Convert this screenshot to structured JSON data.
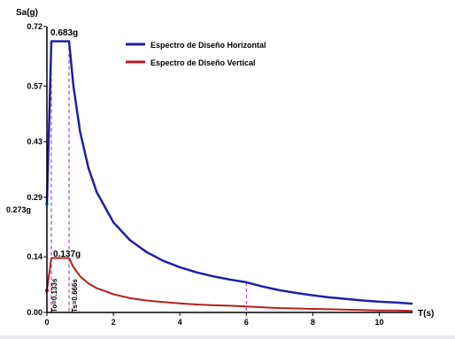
{
  "chart_data": {
    "type": "line",
    "ylabel": "Sa(g)",
    "xlabel": "T(s)",
    "xlim": [
      0,
      11
    ],
    "ylim": [
      0,
      0.72
    ],
    "x_ticks": [
      0,
      2,
      4,
      6,
      8,
      10
    ],
    "y_ticks": [
      {
        "value": 0.0,
        "label": "0.00"
      },
      {
        "value": 0.14,
        "label": "0.14"
      },
      {
        "value": 0.29,
        "label": "0.29"
      },
      {
        "value": 0.43,
        "label": "0.43"
      },
      {
        "value": 0.57,
        "label": "0.57"
      },
      {
        "value": 0.72,
        "label": "0.72"
      }
    ],
    "legend_position": "top-center",
    "series": [
      {
        "name": "Espectro de Diseño Horizontal",
        "color": "#1f1fa8",
        "points": [
          [
            0,
            0.273
          ],
          [
            0.133,
            0.683
          ],
          [
            0.666,
            0.683
          ],
          [
            0.8,
            0.569
          ],
          [
            1.0,
            0.455
          ],
          [
            1.25,
            0.364
          ],
          [
            1.5,
            0.303
          ],
          [
            2.0,
            0.227
          ],
          [
            2.5,
            0.182
          ],
          [
            3.0,
            0.152
          ],
          [
            3.5,
            0.13
          ],
          [
            4.0,
            0.114
          ],
          [
            4.5,
            0.101
          ],
          [
            5.0,
            0.091
          ],
          [
            5.5,
            0.083
          ],
          [
            6.0,
            0.076
          ],
          [
            6.5,
            0.065
          ],
          [
            7.0,
            0.056
          ],
          [
            7.5,
            0.049
          ],
          [
            8.0,
            0.043
          ],
          [
            8.5,
            0.038
          ],
          [
            9.0,
            0.034
          ],
          [
            9.5,
            0.03
          ],
          [
            10.0,
            0.027
          ],
          [
            10.5,
            0.025
          ],
          [
            11.0,
            0.022
          ]
        ]
      },
      {
        "name": "Espectro de Diseño Vertical",
        "color": "#b52020",
        "points": [
          [
            0,
            0.055
          ],
          [
            0.133,
            0.137
          ],
          [
            0.666,
            0.137
          ],
          [
            0.8,
            0.114
          ],
          [
            1.0,
            0.091
          ],
          [
            1.25,
            0.073
          ],
          [
            1.5,
            0.061
          ],
          [
            2.0,
            0.046
          ],
          [
            2.5,
            0.036
          ],
          [
            3.0,
            0.03
          ],
          [
            3.5,
            0.026
          ],
          [
            4.0,
            0.023
          ],
          [
            4.5,
            0.02
          ],
          [
            5.0,
            0.018
          ],
          [
            5.5,
            0.017
          ],
          [
            6.0,
            0.015
          ],
          [
            6.5,
            0.013
          ],
          [
            7.0,
            0.011
          ],
          [
            7.5,
            0.01
          ],
          [
            8.0,
            0.009
          ],
          [
            8.5,
            0.008
          ],
          [
            9.0,
            0.007
          ],
          [
            9.5,
            0.006
          ],
          [
            10.0,
            0.005
          ],
          [
            10.5,
            0.005
          ],
          [
            11.0,
            0.004
          ]
        ]
      }
    ],
    "reference_lines": [
      {
        "x": 0.133,
        "color": "#a020c0"
      },
      {
        "x": 0.666,
        "color": "#a020c0"
      },
      {
        "x": 6.0,
        "color": "#a020c0"
      }
    ],
    "annotations": [
      {
        "id": "peak_h",
        "text": "0.683g"
      },
      {
        "id": "peak_v",
        "text": "0.137g"
      },
      {
        "id": "start_h",
        "text": "0.273g"
      },
      {
        "id": "to",
        "text": "To=0.133s"
      },
      {
        "id": "ts",
        "text": "Ts=0.666s"
      }
    ]
  }
}
